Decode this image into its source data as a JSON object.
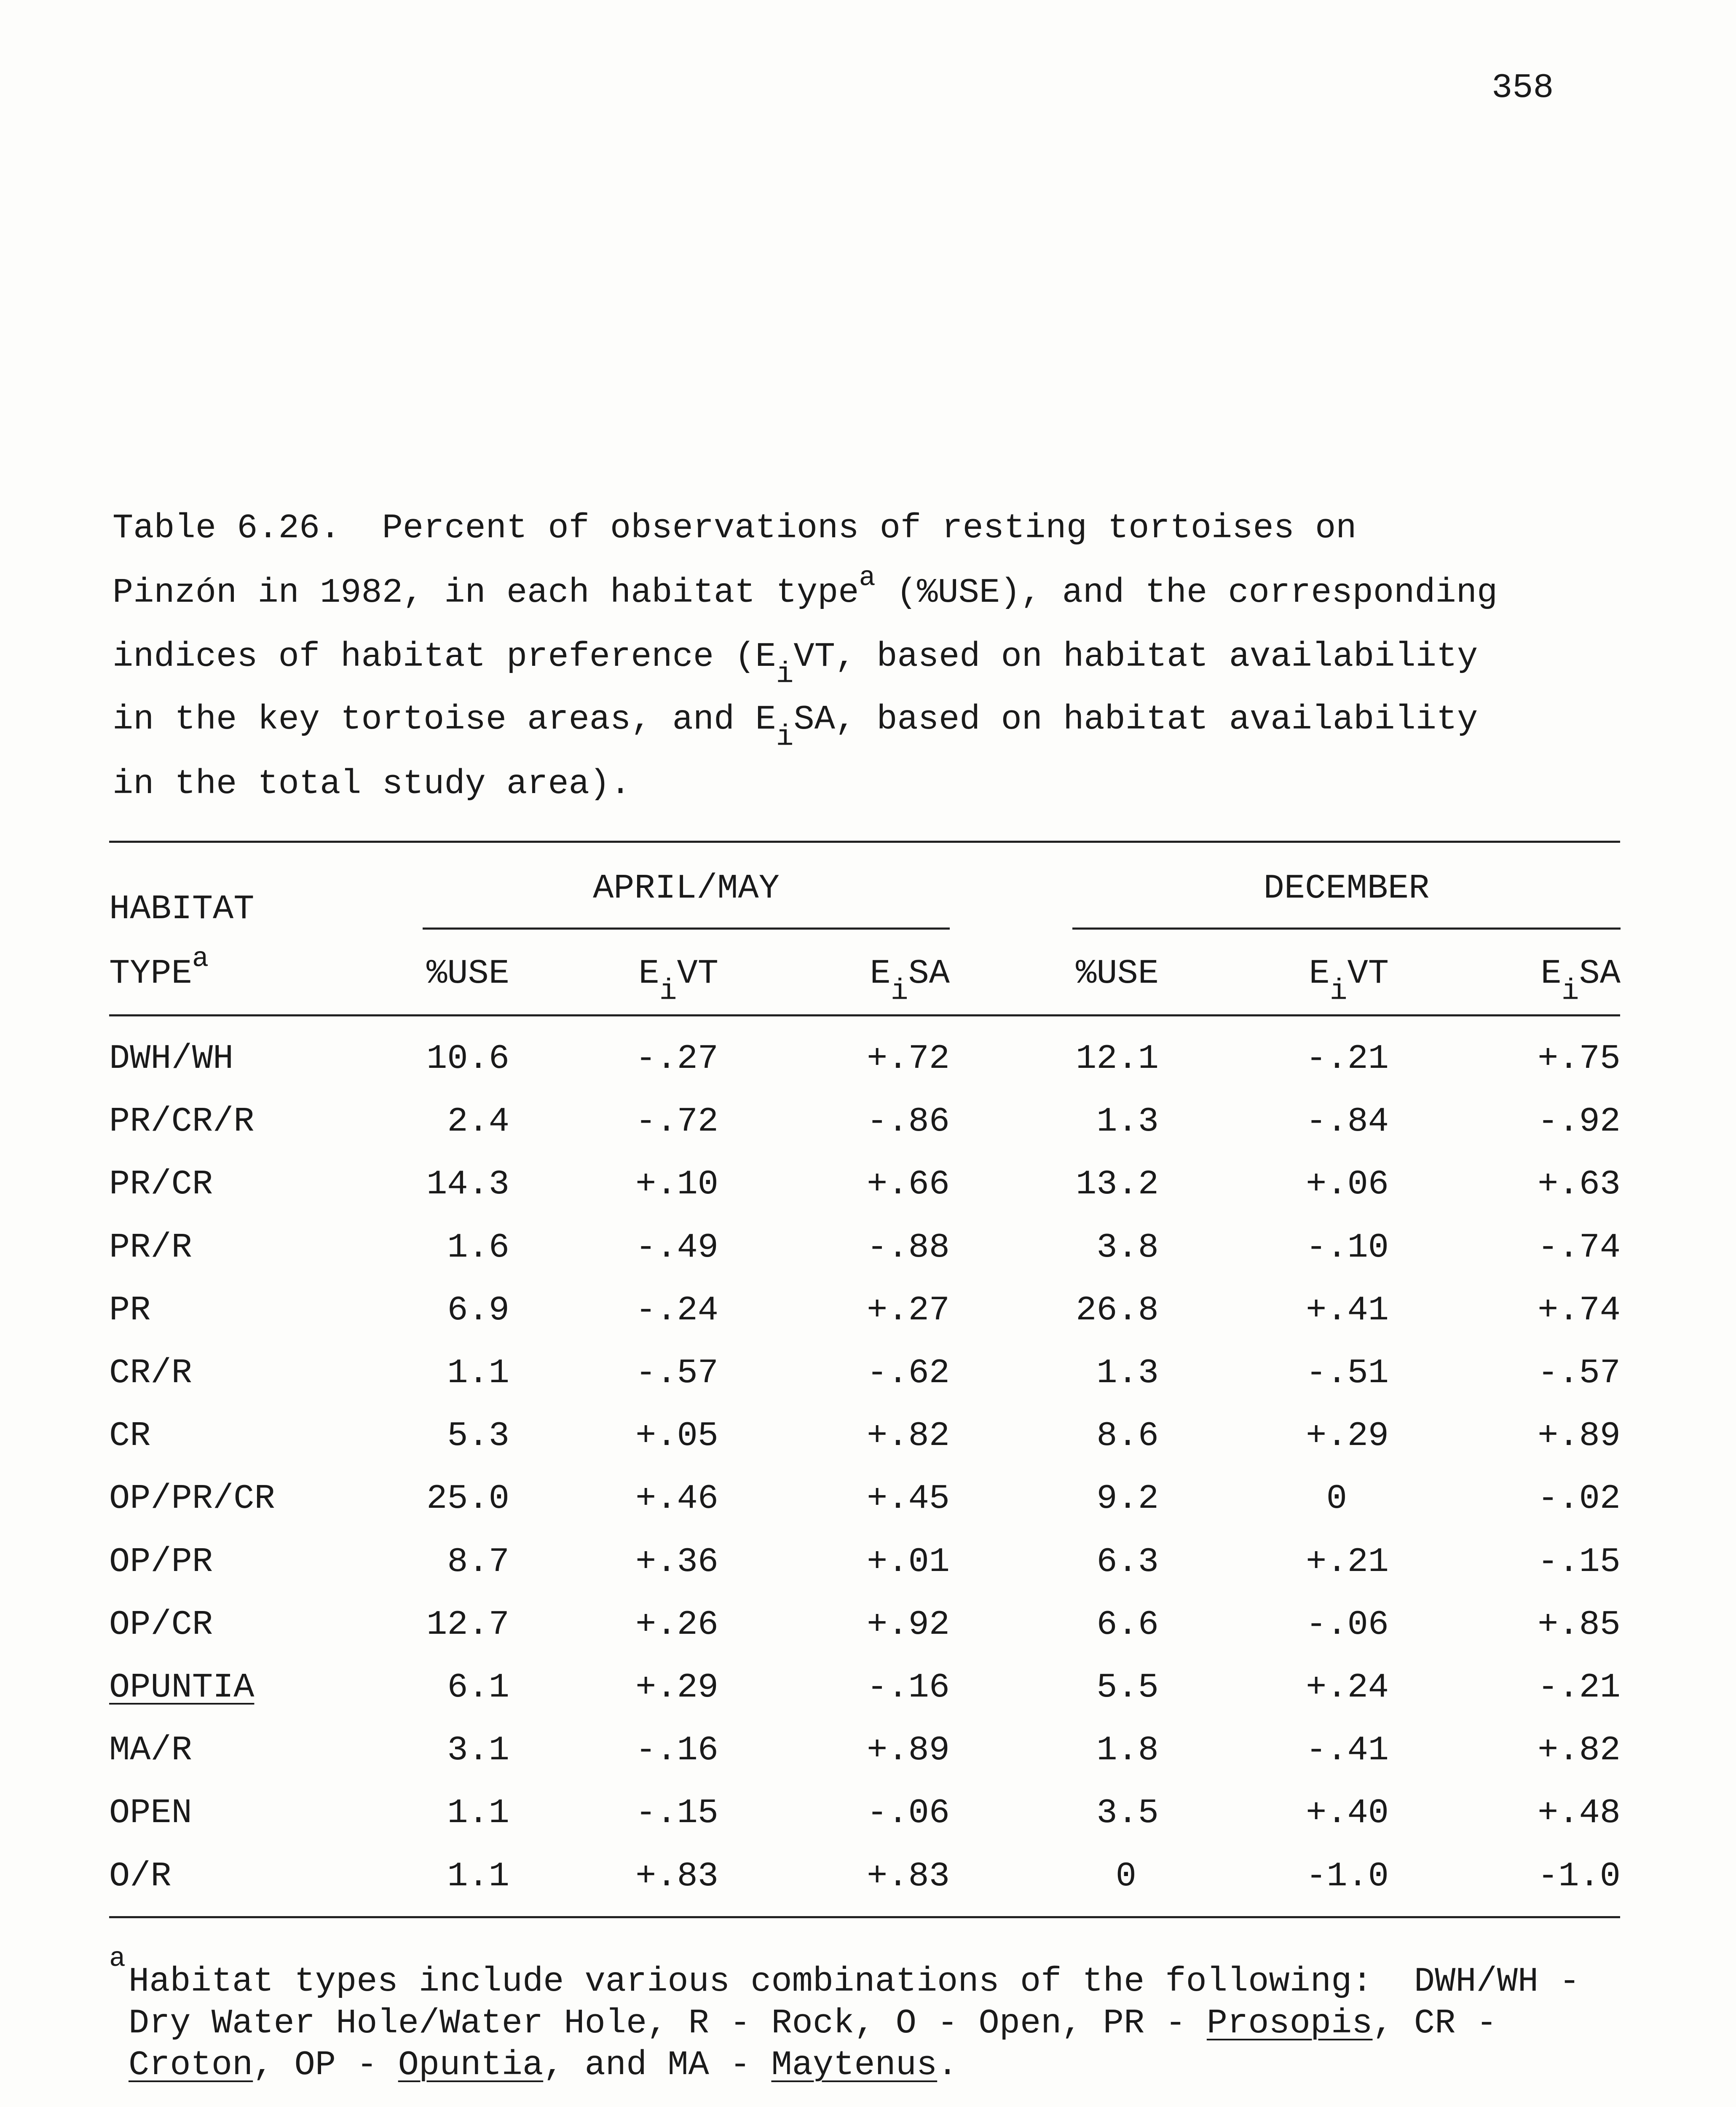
{
  "page_number": "358",
  "caption": {
    "lines": [
      "Table 6.26.  Percent of observations of resting tortoises on",
      "Pinzón in 1982, in each habitat type",
      "indices of habitat preference (E",
      "in the key tortoise areas, and E",
      "in the total study area)."
    ],
    "line2_sup": "a",
    "line2_rest": " (%USE), and the corresponding",
    "line3_sub": "i",
    "line3_rest": "VT, based on habitat availability",
    "line4_sub": "i",
    "line4_rest": "SA, based on habitat availability"
  },
  "table": {
    "row_header_line1": "HABITAT",
    "row_header_line2": "TYPE",
    "row_header_sup": "a",
    "groups": [
      "APRIL/MAY",
      "DECEMBER"
    ],
    "columns": [
      {
        "main": "%USE",
        "sub": "",
        "rest": ""
      },
      {
        "main": "E",
        "sub": "i",
        "rest": "VT"
      },
      {
        "main": "E",
        "sub": "i",
        "rest": "SA"
      },
      {
        "main": "%USE",
        "sub": "",
        "rest": ""
      },
      {
        "main": "E",
        "sub": "i",
        "rest": "VT"
      },
      {
        "main": "E",
        "sub": "i",
        "rest": "SA"
      }
    ],
    "rows": [
      {
        "habitat": "DWH/WH",
        "values": [
          "10.6",
          "-.27",
          "+.72",
          "12.1",
          "-.21",
          "+.75"
        ]
      },
      {
        "habitat": "PR/CR/R",
        "values": [
          "2.4",
          "-.72",
          "-.86",
          "1.3",
          "-.84",
          "-.92"
        ]
      },
      {
        "habitat": "PR/CR",
        "values": [
          "14.3",
          "+.10",
          "+.66",
          "13.2",
          "+.06",
          "+.63"
        ]
      },
      {
        "habitat": "PR/R",
        "values": [
          "1.6",
          "-.49",
          "-.88",
          "3.8",
          "-.10",
          "-.74"
        ]
      },
      {
        "habitat": "PR",
        "values": [
          "6.9",
          "-.24",
          "+.27",
          "26.8",
          "+.41",
          "+.74"
        ]
      },
      {
        "habitat": "CR/R",
        "values": [
          "1.1",
          "-.57",
          "-.62",
          "1.3",
          "-.51",
          "-.57"
        ]
      },
      {
        "habitat": "CR",
        "values": [
          "5.3",
          "+.05",
          "+.82",
          "8.6",
          "+.29",
          "+.89"
        ]
      },
      {
        "habitat": "OP/PR/CR",
        "values": [
          "25.0",
          "+.46",
          "+.45",
          "9.2",
          "0",
          "-.02"
        ]
      },
      {
        "habitat": "OP/PR",
        "values": [
          "8.7",
          "+.36",
          "+.01",
          "6.3",
          "+.21",
          "-.15"
        ]
      },
      {
        "habitat": "OP/CR",
        "values": [
          "12.7",
          "+.26",
          "+.92",
          "6.6",
          "-.06",
          "+.85"
        ]
      },
      {
        "habitat": "OPUNTIA",
        "underline": true,
        "values": [
          "6.1",
          "+.29",
          "-.16",
          "5.5",
          "+.24",
          "-.21"
        ]
      },
      {
        "habitat": "MA/R",
        "values": [
          "3.1",
          "-.16",
          "+.89",
          "1.8",
          "-.41",
          "+.82"
        ]
      },
      {
        "habitat": "OPEN",
        "values": [
          "1.1",
          "-.15",
          "-.06",
          "3.5",
          "+.40",
          "+.48"
        ]
      },
      {
        "habitat": "O/R",
        "values": [
          "1.1",
          "+.83",
          "+.83",
          "0",
          "-1.0",
          "-1.0"
        ]
      }
    ]
  },
  "footnote": {
    "marker": "a",
    "l1": "Habitat types include various combinations of the following:  DWH/WH -",
    "l2a": "Dry Water Hole/Water Hole, R - Rock, O - Open, PR - ",
    "l2_prosopis": "Prosopis",
    "l2b": ", CR -",
    "l3_croton": "Croton",
    "l3a": ", OP - ",
    "l3_opuntia": "Opuntia",
    "l3b": ", and MA - ",
    "l3_maytenus": "Maytenus",
    "l3c": "."
  }
}
